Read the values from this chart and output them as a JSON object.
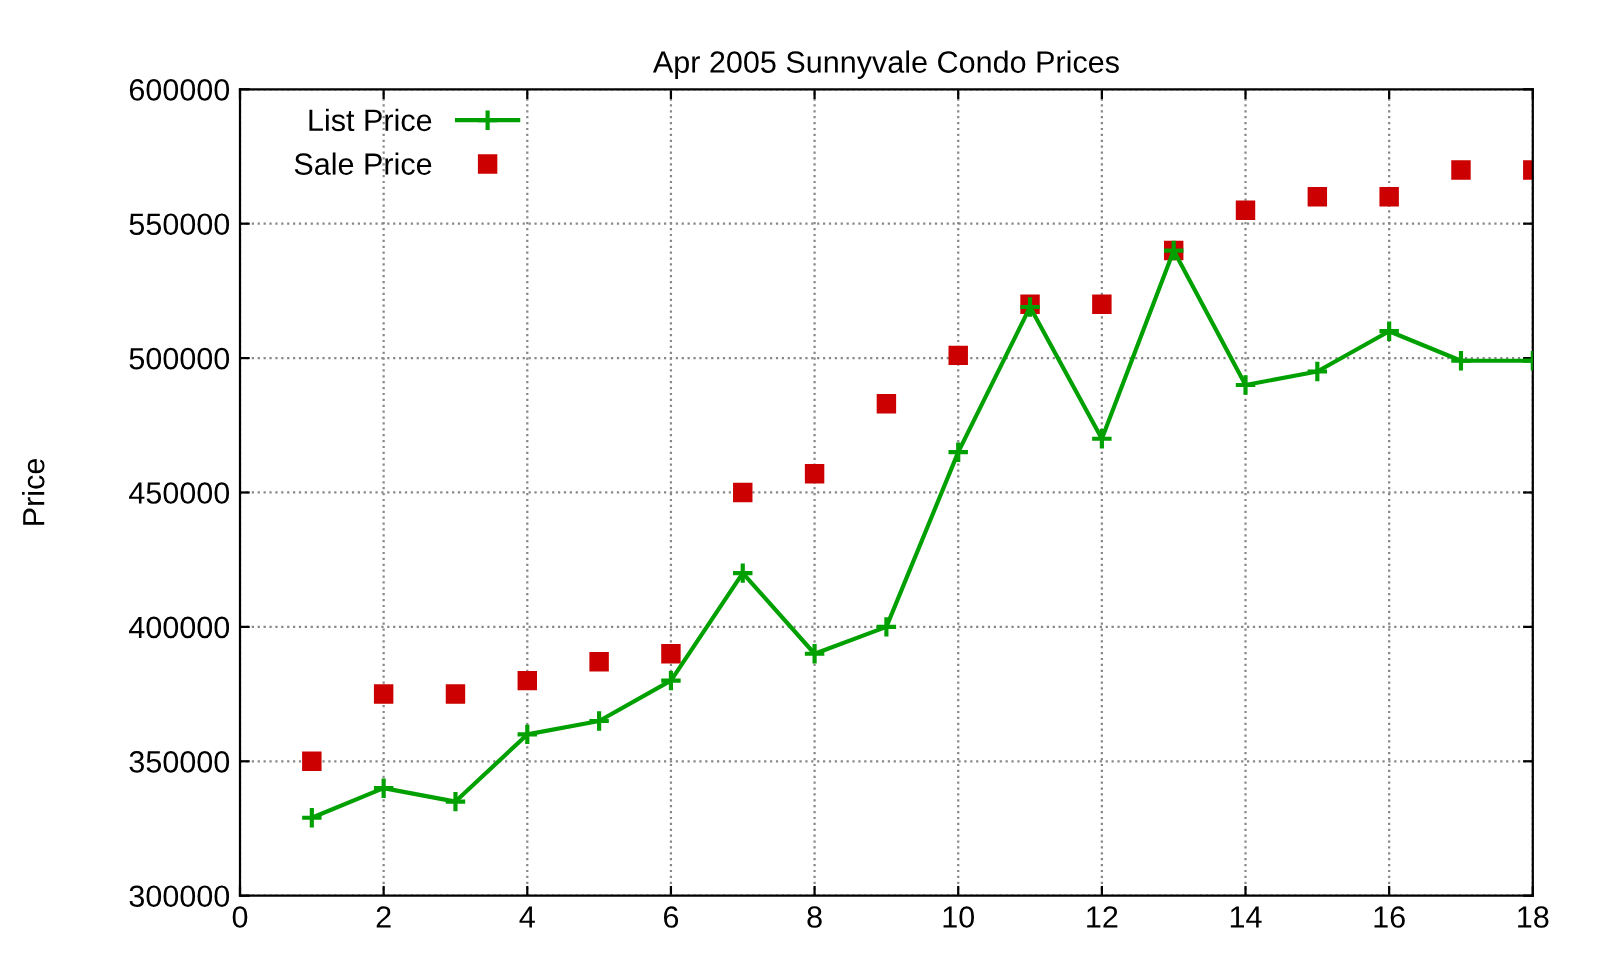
{
  "chart_data": {
    "type": "line",
    "title": "Apr 2005 Sunnyvale Condo Prices",
    "ylabel": "Price",
    "x": [
      1,
      2,
      3,
      4,
      5,
      6,
      7,
      8,
      9,
      10,
      11,
      12,
      13,
      14,
      15,
      16,
      17,
      18
    ],
    "series": [
      {
        "name": "List Price",
        "color": "#00a000",
        "marker": "cross",
        "values": [
          329000,
          340000,
          335000,
          360000,
          365000,
          380000,
          420000,
          390000,
          400000,
          465000,
          519000,
          470000,
          540000,
          490000,
          495000,
          510000,
          499000,
          499000
        ]
      },
      {
        "name": "Sale Price",
        "type": "scatter",
        "color": "#cc0000",
        "marker": "square",
        "values": [
          350000,
          375000,
          375000,
          380000,
          387000,
          390000,
          450000,
          457000,
          483000,
          501000,
          520000,
          520000,
          540000,
          555000,
          560000,
          560000,
          570000,
          570000
        ]
      }
    ],
    "xlim": [
      0,
      18
    ],
    "xticks": [
      0,
      2,
      4,
      6,
      8,
      10,
      12,
      14,
      16,
      18
    ],
    "ylim": [
      300000,
      600000
    ],
    "yticks": [
      300000,
      350000,
      400000,
      450000,
      500000,
      550000,
      600000
    ],
    "grid": true,
    "legend": "top left"
  }
}
